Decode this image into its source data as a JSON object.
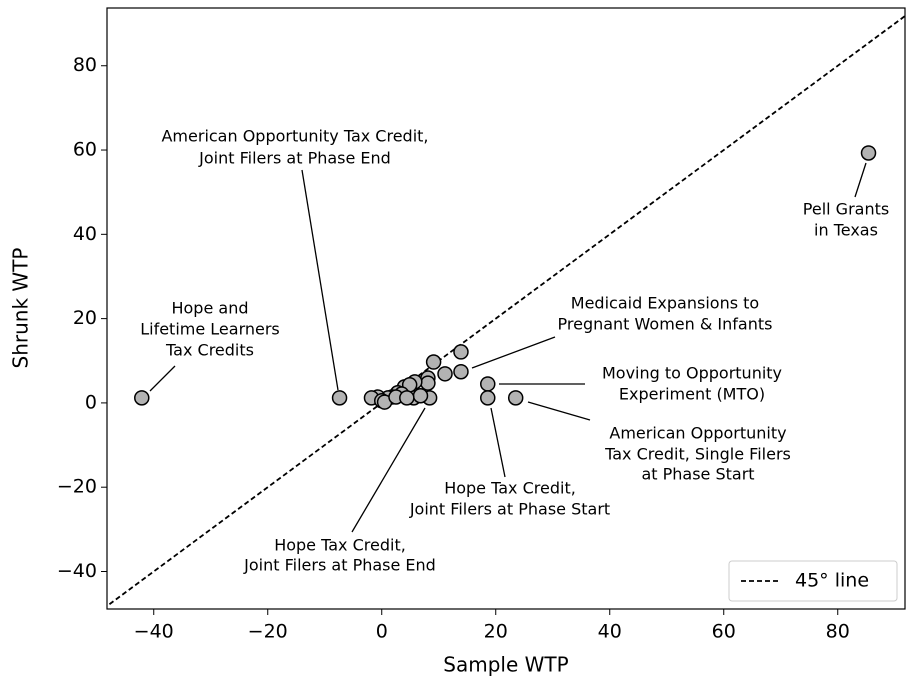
{
  "chart_data": {
    "type": "scatter",
    "x_label": "Sample WTP",
    "y_label": "Shrunk WTP",
    "xlim": [
      -48.2,
      91.8
    ],
    "ylim": [
      -48.9,
      93.7
    ],
    "xticks": [
      {
        "value": -40,
        "label": "−40"
      },
      {
        "value": -20,
        "label": "−20"
      },
      0,
      20,
      40,
      60,
      80
    ],
    "yticks": [
      {
        "value": -40,
        "label": "−40"
      },
      {
        "value": -20,
        "label": "−20"
      },
      0,
      20,
      40,
      60,
      80
    ],
    "grid": false,
    "legend": "lower right",
    "reference_line": {
      "name": "45° line",
      "color": "#000000",
      "style": "dashed"
    },
    "series": [
      {
        "color": "#b3b3b3",
        "x": [
          -42.1,
          -7.4,
          85.4,
          13.9,
          9.1,
          13.9,
          11.1,
          8.1,
          8.1,
          5.8,
          18.6,
          18.6,
          23.5,
          8.4,
          5.6,
          4.0,
          4.9,
          2.8,
          3.5,
          1.8,
          1.1,
          -0.7,
          -1.8,
          0,
          0.5,
          2.5,
          6.8,
          4.4
        ],
        "values": [
          1.2,
          1.2,
          59.3,
          12.1,
          9.7,
          7.4,
          6.9,
          5.9,
          4.7,
          5.0,
          4.5,
          1.2,
          1.2,
          1.2,
          1.2,
          3.8,
          4.3,
          2.4,
          2.1,
          1.4,
          1.2,
          1.4,
          1.2,
          0.5,
          0.2,
          1.4,
          1.7,
          1.2
        ]
      }
    ],
    "annotations": [
      [
        "American Opportunity Tax Credit,",
        "Joint Filers at Phase End"
      ],
      [
        "Hope and",
        "Lifetime Learners",
        "Tax Credits"
      ],
      [
        "Pell Grants",
        "in Texas"
      ],
      [
        "Medicaid Expansions to",
        "Pregnant Women & Infants"
      ],
      [
        "Moving to Opportunity",
        "Experiment (MTO)"
      ],
      [
        "American Opportunity",
        "Tax Credit, Single Filers",
        "at Phase Start"
      ],
      [
        "Hope Tax Credit,",
        "Joint Filers at Phase Start"
      ],
      [
        "Hope Tax Credit,",
        "Joint Filers at Phase End"
      ]
    ]
  }
}
